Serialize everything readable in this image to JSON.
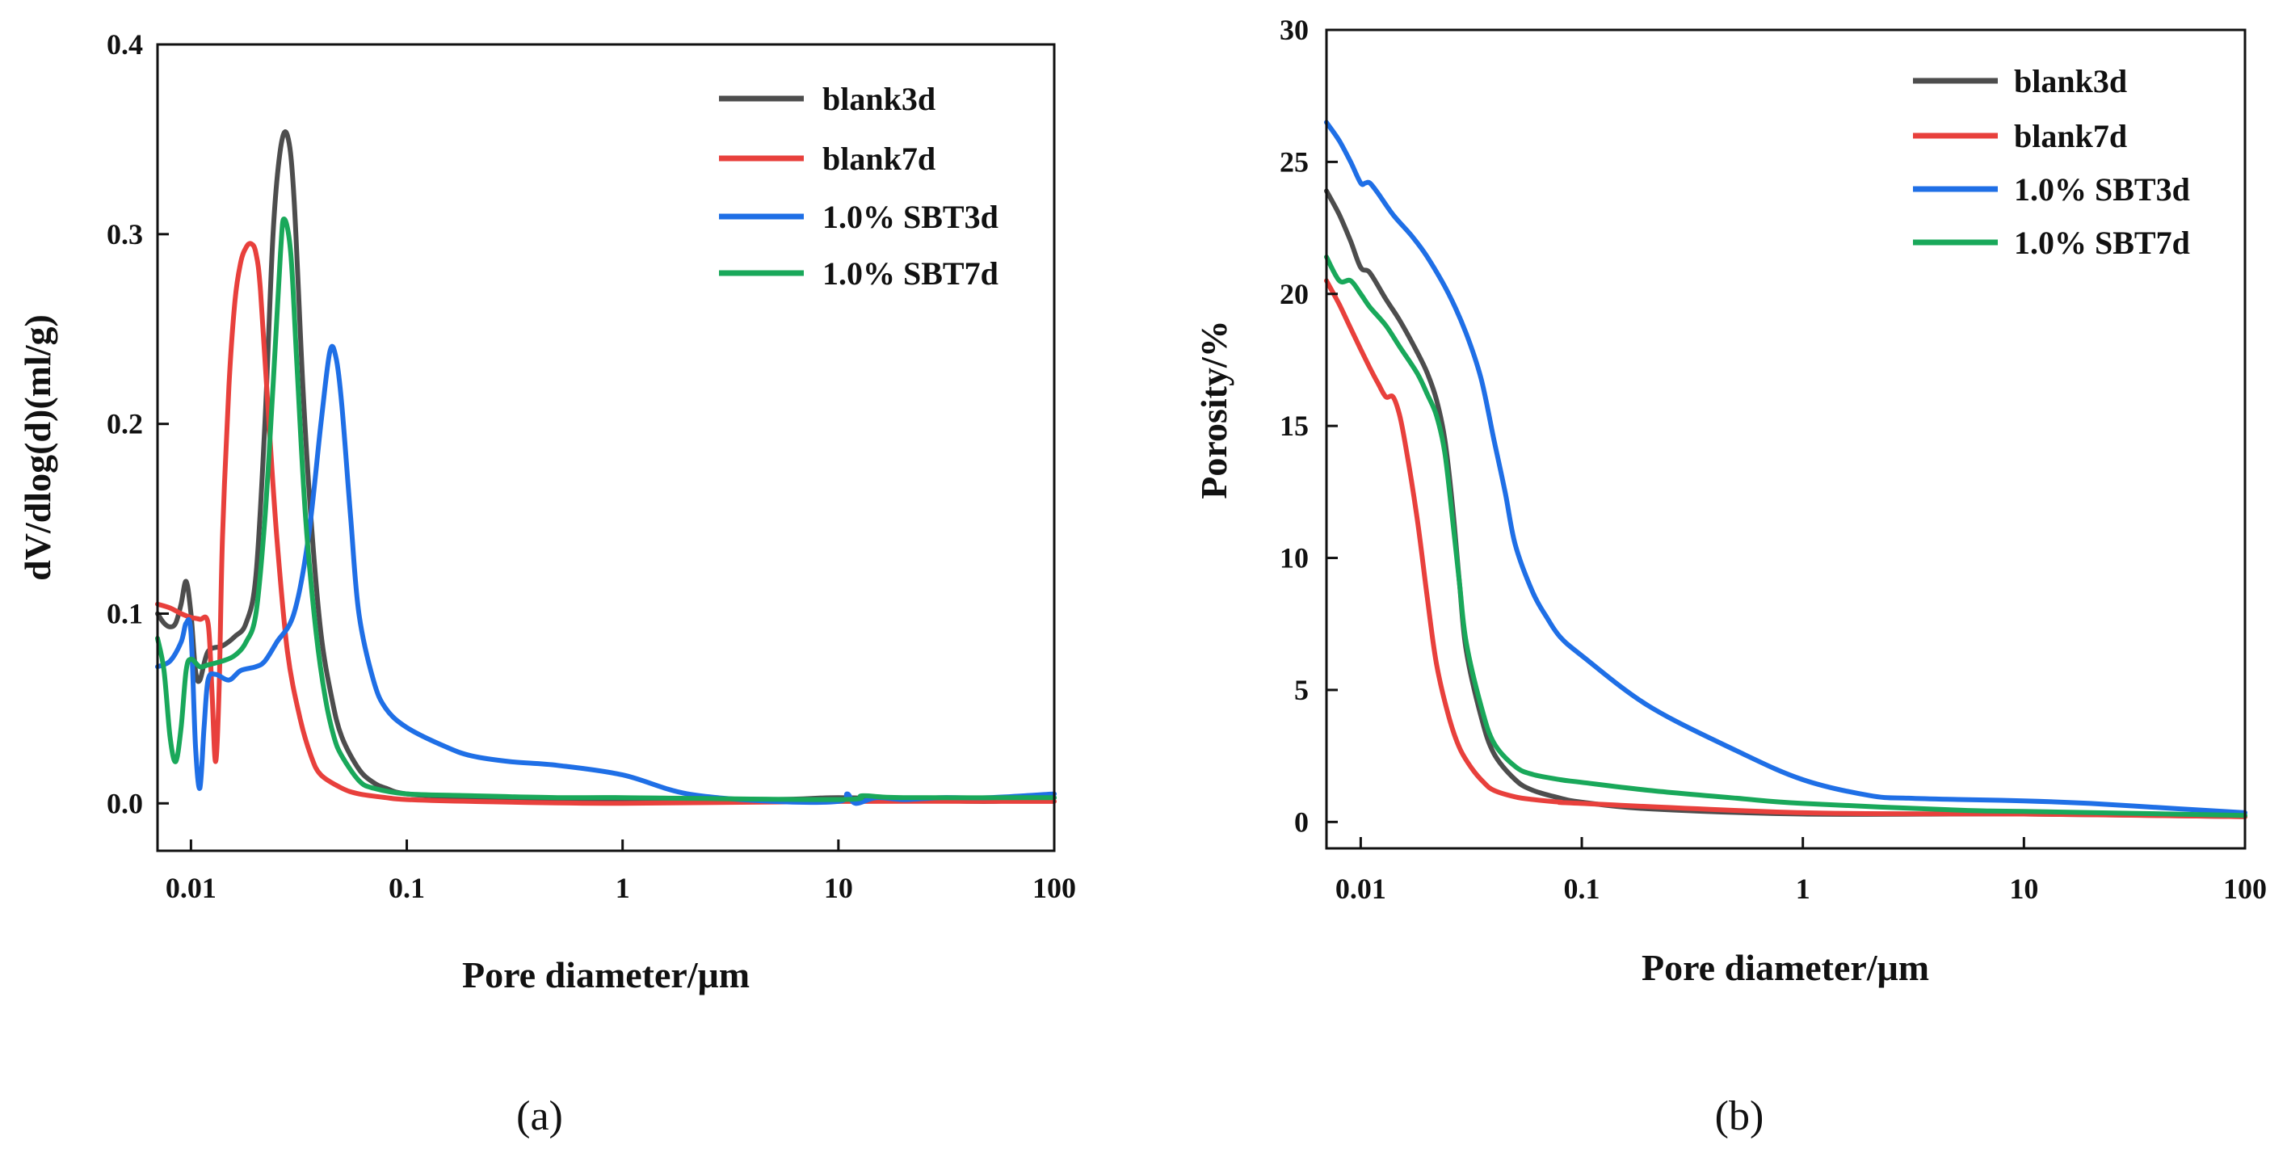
{
  "chart_data": [
    {
      "id": "a",
      "type": "line",
      "panel_label": "(a)",
      "title": "",
      "xlabel": "Pore diameter/μm",
      "ylabel": "dV/dlog(d)(ml/g)",
      "xscale": "log",
      "xlim": [
        0.007,
        100
      ],
      "ylim": [
        -0.025,
        0.4
      ],
      "xticks": [
        0.01,
        0.1,
        1,
        10,
        100
      ],
      "xtick_labels": [
        "0.01",
        "0.1",
        "1",
        "10",
        "100"
      ],
      "yticks": [
        0.0,
        0.1,
        0.2,
        0.3,
        0.4
      ],
      "ytick_labels": [
        "0.0",
        "0.1",
        "0.2",
        "0.3",
        "0.4"
      ],
      "legend_position": "top-right",
      "series": [
        {
          "name": "blank3d",
          "color": "#4d4d4d",
          "x": [
            0.007,
            0.0075,
            0.008,
            0.0085,
            0.009,
            0.0095,
            0.01,
            0.0105,
            0.011,
            0.012,
            0.014,
            0.016,
            0.018,
            0.02,
            0.022,
            0.024,
            0.026,
            0.028,
            0.03,
            0.033,
            0.036,
            0.04,
            0.045,
            0.05,
            0.06,
            0.07,
            0.08,
            0.1,
            0.2,
            0.5,
            1,
            5,
            10,
            20,
            50,
            100
          ],
          "y": [
            0.1,
            0.095,
            0.093,
            0.095,
            0.105,
            0.117,
            0.1,
            0.07,
            0.065,
            0.08,
            0.083,
            0.088,
            0.095,
            0.12,
            0.2,
            0.3,
            0.345,
            0.352,
            0.32,
            0.22,
            0.15,
            0.09,
            0.055,
            0.035,
            0.018,
            0.011,
            0.008,
            0.005,
            0.003,
            0.002,
            0.002,
            0.002,
            0.003,
            0.002,
            0.001,
            0.003
          ]
        },
        {
          "name": "blank7d",
          "color": "#e8403c",
          "x": [
            0.007,
            0.008,
            0.009,
            0.01,
            0.011,
            0.012,
            0.0125,
            0.013,
            0.0135,
            0.014,
            0.015,
            0.016,
            0.017,
            0.018,
            0.019,
            0.02,
            0.021,
            0.023,
            0.025,
            0.028,
            0.032,
            0.036,
            0.04,
            0.05,
            0.06,
            0.08,
            0.1,
            0.2,
            1,
            10,
            100
          ],
          "y": [
            0.105,
            0.103,
            0.1,
            0.098,
            0.097,
            0.095,
            0.06,
            0.022,
            0.06,
            0.14,
            0.22,
            0.265,
            0.285,
            0.293,
            0.295,
            0.29,
            0.27,
            0.2,
            0.14,
            0.08,
            0.045,
            0.025,
            0.015,
            0.008,
            0.005,
            0.003,
            0.002,
            0.001,
            0.0,
            0.001,
            0.001
          ]
        },
        {
          "name": "1.0% SBT3d",
          "color": "#1f6fe6",
          "x": [
            0.007,
            0.008,
            0.009,
            0.0095,
            0.01,
            0.0105,
            0.011,
            0.0115,
            0.012,
            0.013,
            0.015,
            0.017,
            0.02,
            0.022,
            0.025,
            0.03,
            0.035,
            0.04,
            0.044,
            0.047,
            0.05,
            0.055,
            0.06,
            0.07,
            0.08,
            0.1,
            0.15,
            0.2,
            0.3,
            0.5,
            1,
            2,
            5,
            10,
            11,
            12,
            15,
            20,
            30,
            50,
            100
          ],
          "y": [
            0.072,
            0.075,
            0.085,
            0.095,
            0.09,
            0.03,
            0.008,
            0.04,
            0.065,
            0.068,
            0.065,
            0.07,
            0.072,
            0.075,
            0.085,
            0.1,
            0.14,
            0.2,
            0.238,
            0.235,
            0.21,
            0.15,
            0.1,
            0.065,
            0.05,
            0.04,
            0.03,
            0.025,
            0.022,
            0.02,
            0.015,
            0.005,
            0.001,
            0.001,
            0.005,
            0.0,
            0.003,
            0.002,
            0.003,
            0.003,
            0.005
          ]
        },
        {
          "name": "1.0% SBT7d",
          "color": "#19a85a",
          "x": [
            0.007,
            0.0075,
            0.008,
            0.0085,
            0.009,
            0.0095,
            0.01,
            0.011,
            0.012,
            0.014,
            0.016,
            0.018,
            0.02,
            0.022,
            0.024,
            0.026,
            0.027,
            0.029,
            0.031,
            0.034,
            0.038,
            0.042,
            0.046,
            0.05,
            0.06,
            0.07,
            0.1,
            0.2,
            0.5,
            1,
            10,
            13,
            20,
            100
          ],
          "y": [
            0.087,
            0.07,
            0.035,
            0.022,
            0.04,
            0.07,
            0.076,
            0.072,
            0.073,
            0.075,
            0.078,
            0.085,
            0.1,
            0.15,
            0.22,
            0.29,
            0.308,
            0.29,
            0.23,
            0.15,
            0.09,
            0.055,
            0.035,
            0.025,
            0.012,
            0.008,
            0.005,
            0.004,
            0.003,
            0.003,
            0.002,
            0.004,
            0.003,
            0.003
          ]
        }
      ]
    },
    {
      "id": "b",
      "type": "line",
      "panel_label": "(b)",
      "title": "",
      "xlabel": "Pore diameter/μm",
      "ylabel": "Porosity/%",
      "xscale": "log",
      "xlim": [
        0.007,
        100
      ],
      "ylim": [
        -1,
        30
      ],
      "xticks": [
        0.01,
        0.1,
        1,
        10,
        100
      ],
      "xtick_labels": [
        "0.01",
        "0.1",
        "1",
        "10",
        "100"
      ],
      "yticks": [
        0,
        5,
        10,
        15,
        20,
        25,
        30
      ],
      "ytick_labels": [
        "0",
        "5",
        "10",
        "15",
        "20",
        "25",
        "30"
      ],
      "legend_position": "top-right",
      "series": [
        {
          "name": "blank3d",
          "color": "#4d4d4d",
          "x": [
            0.007,
            0.008,
            0.009,
            0.01,
            0.011,
            0.013,
            0.015,
            0.018,
            0.02,
            0.022,
            0.024,
            0.026,
            0.028,
            0.03,
            0.035,
            0.04,
            0.05,
            0.06,
            0.08,
            0.1,
            0.2,
            1,
            10,
            100
          ],
          "y": [
            23.9,
            23.0,
            22.0,
            21.0,
            20.8,
            19.8,
            19.0,
            17.8,
            17.0,
            16.0,
            14.5,
            12.0,
            9.0,
            6.5,
            4.0,
            2.6,
            1.6,
            1.2,
            0.9,
            0.75,
            0.5,
            0.3,
            0.3,
            0.2
          ]
        },
        {
          "name": "blank7d",
          "color": "#e8403c",
          "x": [
            0.007,
            0.008,
            0.009,
            0.01,
            0.011,
            0.012,
            0.013,
            0.014,
            0.015,
            0.016,
            0.018,
            0.02,
            0.022,
            0.025,
            0.028,
            0.032,
            0.036,
            0.04,
            0.05,
            0.06,
            0.08,
            0.1,
            1,
            10,
            100
          ],
          "y": [
            20.5,
            19.6,
            18.7,
            17.9,
            17.2,
            16.6,
            16.1,
            16.1,
            15.4,
            14.2,
            11.5,
            8.5,
            6.0,
            4.0,
            2.8,
            2.0,
            1.5,
            1.2,
            0.95,
            0.85,
            0.75,
            0.7,
            0.35,
            0.3,
            0.2
          ]
        },
        {
          "name": "1.0% SBT3d",
          "color": "#1f6fe6",
          "x": [
            0.007,
            0.008,
            0.009,
            0.01,
            0.0105,
            0.011,
            0.012,
            0.014,
            0.017,
            0.02,
            0.025,
            0.03,
            0.035,
            0.04,
            0.045,
            0.05,
            0.06,
            0.07,
            0.08,
            0.1,
            0.2,
            0.5,
            1,
            2,
            3,
            5,
            10,
            20,
            50,
            100
          ],
          "y": [
            26.5,
            25.8,
            25.0,
            24.2,
            24.2,
            24.2,
            23.8,
            23.0,
            22.2,
            21.4,
            20.0,
            18.5,
            16.8,
            14.5,
            12.5,
            10.5,
            8.7,
            7.7,
            7.0,
            6.3,
            4.4,
            2.7,
            1.6,
            1.0,
            0.9,
            0.85,
            0.8,
            0.7,
            0.5,
            0.35
          ]
        },
        {
          "name": "1.0% SBT7d",
          "color": "#19a85a",
          "x": [
            0.007,
            0.008,
            0.009,
            0.01,
            0.011,
            0.013,
            0.015,
            0.018,
            0.02,
            0.022,
            0.024,
            0.026,
            0.028,
            0.03,
            0.035,
            0.04,
            0.05,
            0.06,
            0.08,
            0.1,
            0.2,
            0.5,
            1,
            5,
            10,
            100
          ],
          "y": [
            21.4,
            20.5,
            20.5,
            20.0,
            19.5,
            18.8,
            18.0,
            17.0,
            16.2,
            15.4,
            14.0,
            11.5,
            9.0,
            6.8,
            4.4,
            3.0,
            2.1,
            1.8,
            1.6,
            1.5,
            1.2,
            0.9,
            0.7,
            0.45,
            0.4,
            0.25
          ]
        }
      ]
    }
  ]
}
